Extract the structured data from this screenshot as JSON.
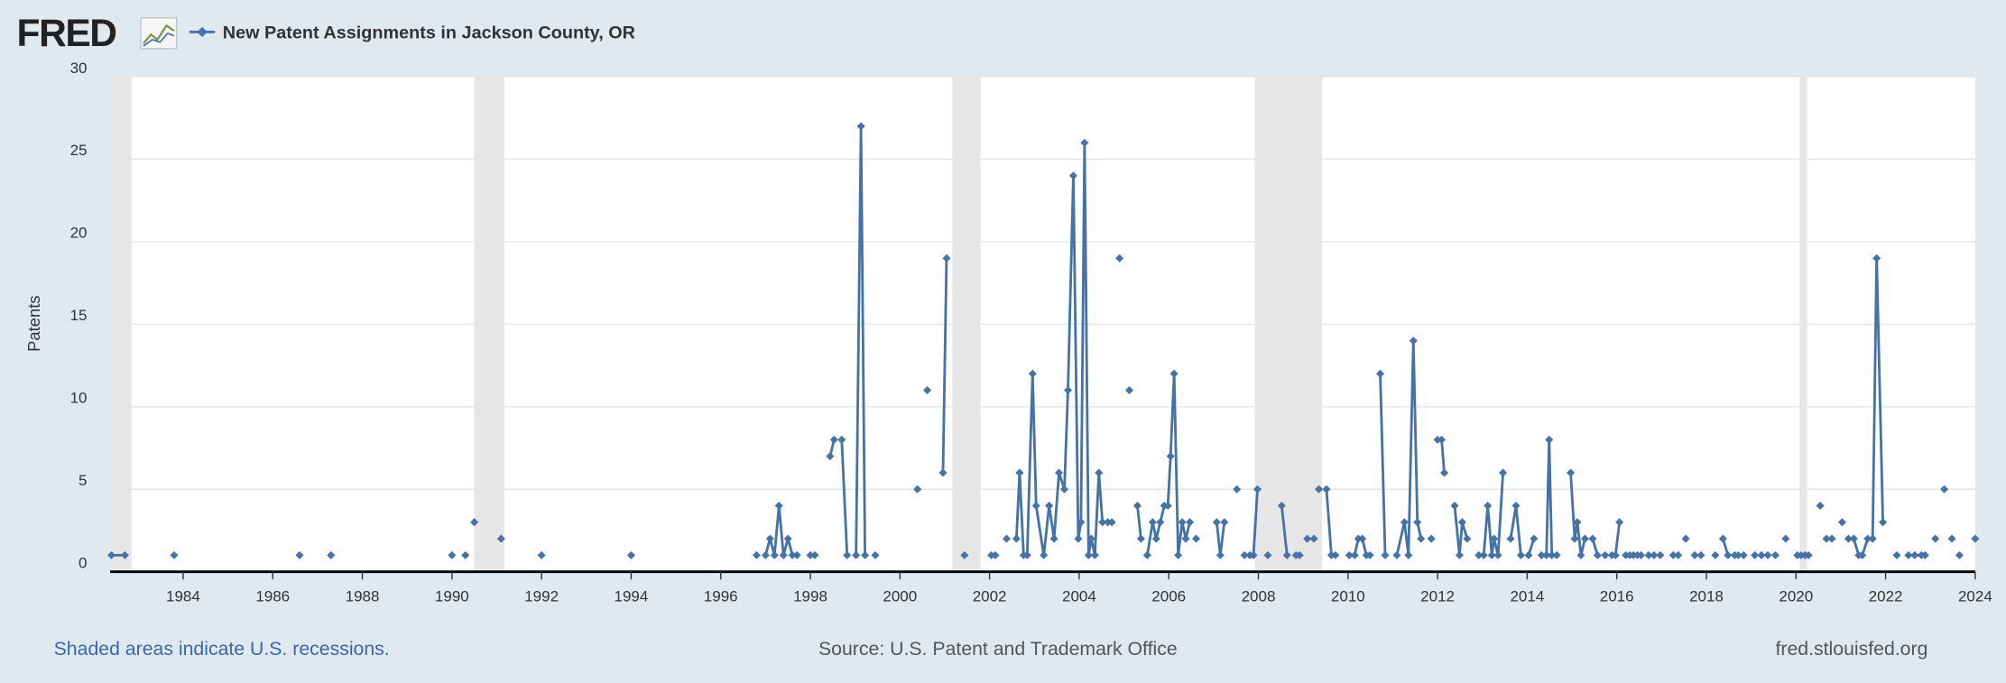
{
  "logo": "FRED",
  "chart_data": {
    "type": "line",
    "y_label": "Patents",
    "footer_left": "Shaded areas indicate U.S. recessions.",
    "footer_center": "Source: U.S. Patent and Trademark Office",
    "footer_right": "fred.stlouisfed.org",
    "recessions": [
      [
        1981.5,
        1982.85
      ],
      [
        1990.5,
        1991.17
      ],
      [
        2001.17,
        2001.8
      ],
      [
        2007.92,
        2009.42
      ],
      [
        2020.08,
        2020.25
      ]
    ],
    "xlim": [
      1982.37,
      2024
    ],
    "xticks": [
      1984,
      1986,
      1988,
      1990,
      1992,
      1994,
      1996,
      1998,
      2000,
      2002,
      2004,
      2006,
      2008,
      2010,
      2012,
      2014,
      2016,
      2018,
      2020,
      2022,
      2024
    ],
    "ylim": [
      0,
      30
    ],
    "yticks": [
      0,
      5,
      10,
      15,
      20,
      25,
      30
    ],
    "grid": true,
    "x": [
      1982.4,
      1982.7,
      null,
      1983.8,
      null,
      1986.6,
      null,
      1987.3,
      null,
      1990,
      null,
      1990.3,
      null,
      1990.5,
      null,
      1991.1,
      null,
      1992,
      null,
      1994,
      null,
      1996.8,
      null,
      1997,
      1997.1,
      1997.2,
      1997.3,
      1997.4,
      1997.5,
      1997.6,
      1997.7,
      null,
      1998,
      1998.1,
      null,
      1998.44,
      1998.53,
      null,
      1998.7,
      1998.82,
      null,
      1999.02,
      1999.13,
      1999.22,
      null,
      1999.45,
      null,
      2000.39,
      null,
      2000.61,
      null,
      2000.96,
      2001.04,
      null,
      2001.44,
      null,
      2002.04,
      2002.13,
      null,
      2002.38,
      null,
      2002.6,
      2002.67,
      2002.76,
      2002.84,
      2002.96,
      2003.04,
      2003.21,
      2003.33,
      2003.44,
      2003.55,
      2003.67,
      2003.75,
      2003.87,
      2003.98,
      2004.04,
      2004.12,
      2004.21,
      2004.27,
      2004.35,
      2004.44,
      2004.52,
      null,
      2004.64,
      2004.73,
      null,
      2004.9,
      null,
      2005.12,
      null,
      2005.3,
      2005.38,
      null,
      2005.52,
      2005.64,
      2005.72,
      2005.81,
      2005.9,
      2005.98,
      2006.04,
      2006.12,
      2006.21,
      2006.3,
      2006.38,
      2006.47,
      null,
      2006.61,
      null,
      2007.07,
      2007.15,
      2007.24,
      null,
      2007.52,
      null,
      2007.69,
      2007.81,
      2007.89,
      2007.98,
      null,
      2008.21,
      null,
      2008.52,
      2008.64,
      null,
      2008.84,
      2008.92,
      null,
      2009.09,
      2009.24,
      null,
      2009.35,
      null,
      2009.52,
      2009.63,
      2009.72,
      null,
      2010.03,
      2010.15,
      2010.23,
      2010.32,
      2010.41,
      2010.49,
      null,
      2010.72,
      2010.83,
      null,
      2011.09,
      2011.26,
      2011.35,
      2011.46,
      2011.55,
      2011.63,
      null,
      2011.86,
      null,
      2012,
      2012.09,
      2012.15,
      null,
      2012.38,
      2012.49,
      2012.55,
      2012.66,
      null,
      2012.92,
      2013.03,
      2013.12,
      2013.21,
      2013.26,
      2013.35,
      2013.46,
      null,
      2013.63,
      2013.75,
      2013.86,
      null,
      2014.03,
      2014.15,
      null,
      2014.32,
      2014.43,
      2014.49,
      2014.55,
      2014.66,
      null,
      2014.97,
      2015.06,
      2015.12,
      2015.2,
      2015.29,
      null,
      2015.46,
      2015.57,
      null,
      2015.74,
      null,
      2015.89,
      2015.97,
      2016.06,
      null,
      2016.2,
      2016.29,
      2016.37,
      2016.46,
      2016.54,
      null,
      2016.71,
      null,
      2016.83,
      null,
      2016.97,
      null,
      2017.26,
      2017.37,
      null,
      2017.54,
      null,
      2017.74,
      2017.88,
      null,
      2018.2,
      null,
      2018.37,
      2018.48,
      null,
      2018.63,
      2018.71,
      2018.83,
      null,
      2019.08,
      null,
      2019.23,
      null,
      2019.37,
      null,
      2019.54,
      null,
      2019.77,
      null,
      2020.03,
      2020.11,
      2020.2,
      2020.28,
      null,
      2020.54,
      null,
      2020.68,
      2020.8,
      null,
      2021.03,
      null,
      2021.17,
      2021.29,
      2021.4,
      2021.48,
      2021.6,
      2021.71,
      2021.8,
      2021.94,
      null,
      2022.25,
      null,
      2022.51,
      2022.65,
      2022.8,
      2022.88,
      null,
      2023.11,
      null,
      2023.31,
      null,
      2023.48,
      null,
      2023.65,
      null,
      2024
    ],
    "series": [
      {
        "name": "New Patent Assignments in Jackson County, OR",
        "color": "#4572a7",
        "values": [
          1,
          1,
          null,
          1,
          null,
          1,
          null,
          1,
          null,
          1,
          null,
          1,
          null,
          3,
          null,
          2,
          null,
          1,
          null,
          1,
          null,
          1,
          null,
          1,
          2,
          1,
          4,
          1,
          2,
          1,
          1,
          null,
          1,
          1,
          null,
          7,
          8,
          null,
          8,
          1,
          null,
          1,
          27,
          1,
          null,
          1,
          null,
          5,
          null,
          11,
          null,
          6,
          19,
          null,
          1,
          null,
          1,
          1,
          null,
          2,
          null,
          2,
          6,
          1,
          1,
          12,
          4,
          1,
          4,
          2,
          6,
          5,
          11,
          24,
          2,
          3,
          26,
          1,
          2,
          1,
          6,
          3,
          null,
          3,
          3,
          null,
          19,
          null,
          11,
          null,
          4,
          2,
          null,
          1,
          3,
          2,
          3,
          4,
          4,
          7,
          12,
          1,
          3,
          2,
          3,
          null,
          2,
          null,
          3,
          1,
          3,
          null,
          5,
          null,
          1,
          1,
          1,
          5,
          null,
          1,
          null,
          4,
          1,
          null,
          1,
          1,
          null,
          2,
          2,
          null,
          5,
          null,
          5,
          1,
          1,
          null,
          1,
          1,
          2,
          2,
          1,
          1,
          null,
          12,
          1,
          null,
          1,
          3,
          1,
          14,
          3,
          2,
          null,
          2,
          null,
          8,
          8,
          6,
          null,
          4,
          1,
          3,
          2,
          null,
          1,
          1,
          4,
          1,
          2,
          1,
          6,
          null,
          2,
          4,
          1,
          null,
          1,
          2,
          null,
          1,
          1,
          8,
          1,
          1,
          null,
          6,
          2,
          3,
          1,
          2,
          null,
          2,
          1,
          null,
          1,
          null,
          1,
          1,
          3,
          null,
          1,
          1,
          1,
          1,
          1,
          null,
          1,
          null,
          1,
          null,
          1,
          null,
          1,
          1,
          null,
          2,
          null,
          1,
          1,
          null,
          1,
          null,
          2,
          1,
          null,
          1,
          1,
          1,
          null,
          1,
          null,
          1,
          null,
          1,
          null,
          1,
          null,
          2,
          null,
          1,
          1,
          1,
          1,
          null,
          4,
          null,
          2,
          2,
          null,
          3,
          null,
          2,
          2,
          1,
          1,
          2,
          2,
          19,
          3,
          null,
          1,
          null,
          1,
          1,
          1,
          1,
          null,
          2,
          null,
          5,
          null,
          2,
          null,
          1,
          null,
          2
        ]
      }
    ]
  }
}
